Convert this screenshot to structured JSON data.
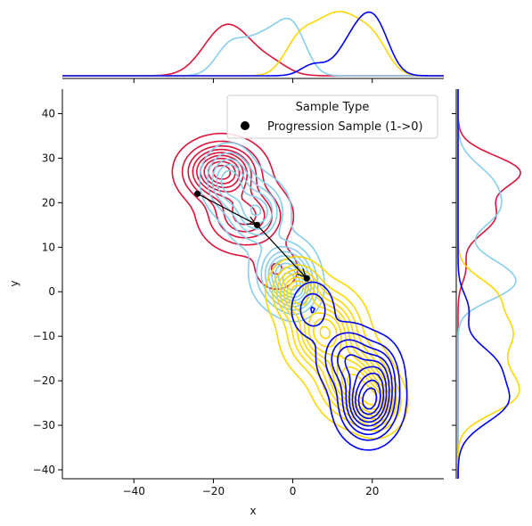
{
  "chart_data": {
    "type": "contour",
    "xlabel": "x",
    "ylabel": "y",
    "xlim": [
      -58,
      38
    ],
    "ylim": [
      -42,
      45.5
    ],
    "xticks": [
      -40,
      -20,
      0,
      20
    ],
    "yticks": [
      40,
      30,
      20,
      10,
      0,
      -10,
      -20,
      -30,
      -40
    ],
    "legend": {
      "title": "Sample Type",
      "entries": [
        {
          "label": "Progression Sample (1->0)",
          "color": "#000000"
        }
      ]
    },
    "series": [
      {
        "color": "#dc143c",
        "components": [
          {
            "cx": -18,
            "cy": 27,
            "sx": 5.2,
            "sy": 3.6,
            "weight": 1.0
          },
          {
            "cx": -12,
            "cy": 17,
            "sx": 5.8,
            "sy": 4.2,
            "weight": 0.55
          },
          {
            "cx": -4,
            "cy": 5,
            "sx": 3.5,
            "sy": 3.0,
            "weight": 0.18
          }
        ]
      },
      {
        "color": "#87ceeb",
        "components": [
          {
            "cx": -16,
            "cy": 25,
            "sx": 3.5,
            "sy": 4.0,
            "weight": 0.7
          },
          {
            "cx": -9,
            "cy": 18,
            "sx": 4.0,
            "sy": 4.0,
            "weight": 0.75
          },
          {
            "cx": -2,
            "cy": 4,
            "sx": 4.0,
            "sy": 4.0,
            "weight": 1.0
          },
          {
            "cx": 1,
            "cy": 0,
            "sx": 3.0,
            "sy": 3.0,
            "weight": 0.6
          }
        ]
      },
      {
        "color": "#ffd700",
        "components": [
          {
            "cx": 1,
            "cy": 0,
            "sx": 3.5,
            "sy": 3.5,
            "weight": 0.7
          },
          {
            "cx": 8,
            "cy": -9,
            "sx": 5.0,
            "sy": 5.0,
            "weight": 0.9
          },
          {
            "cx": 15,
            "cy": -20,
            "sx": 4.5,
            "sy": 4.5,
            "weight": 0.85
          },
          {
            "cx": 21,
            "cy": -25,
            "sx": 3.5,
            "sy": 3.5,
            "weight": 0.7
          }
        ]
      },
      {
        "color": "#0000ff",
        "components": [
          {
            "cx": 19,
            "cy": -25,
            "sx": 4.0,
            "sy": 4.5,
            "weight": 1.0
          },
          {
            "cx": 14,
            "cy": -15,
            "sx": 4.0,
            "sy": 4.0,
            "weight": 0.5
          },
          {
            "cx": 5,
            "cy": -4,
            "sx": 3.0,
            "sy": 3.5,
            "weight": 0.3
          },
          {
            "cx": 22,
            "cy": -18,
            "sx": 3.0,
            "sy": 4.0,
            "weight": 0.4
          }
        ]
      }
    ],
    "progression": [
      {
        "x": -24,
        "y": 22
      },
      {
        "x": -9,
        "y": 15
      },
      {
        "x": 3.5,
        "y": 3
      }
    ]
  }
}
